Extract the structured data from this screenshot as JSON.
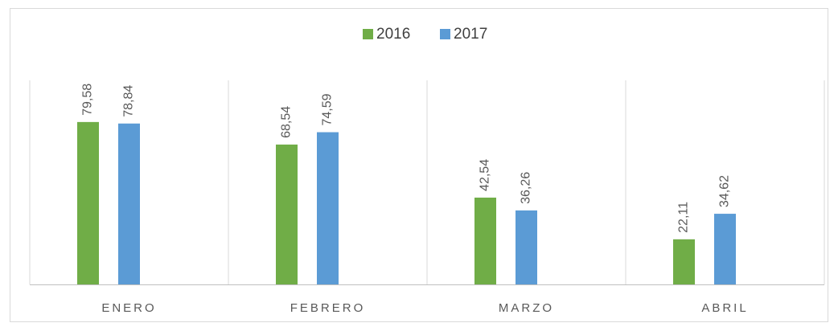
{
  "chart_data": {
    "type": "bar",
    "categories": [
      "ENERO",
      "FEBRERO",
      "MARZO",
      "ABRIL"
    ],
    "series": [
      {
        "name": "2016",
        "color": "#70ad47",
        "values": [
          79.58,
          68.54,
          42.54,
          22.11
        ],
        "value_labels": [
          "79,58",
          "68,54",
          "42,54",
          "22,11"
        ]
      },
      {
        "name": "2017",
        "color": "#5b9bd5",
        "values": [
          78.84,
          74.59,
          36.26,
          34.62
        ],
        "value_labels": [
          "78,84",
          "74,59",
          "36,26",
          "34,62"
        ]
      }
    ],
    "ylim": [
      0,
      100
    ],
    "legend": "top"
  }
}
